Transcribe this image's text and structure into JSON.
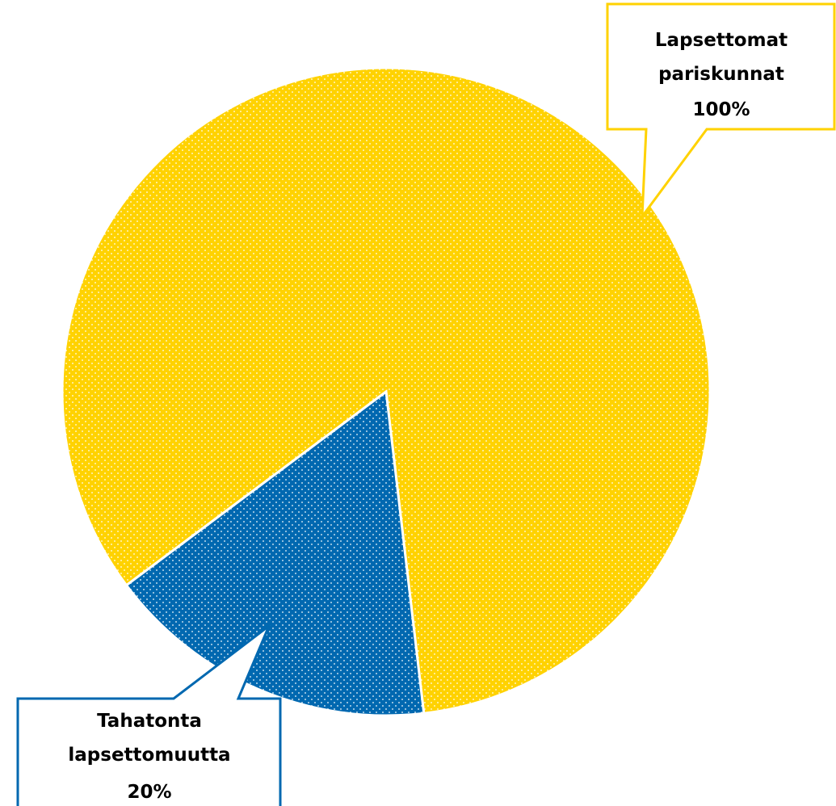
{
  "chart_data": {
    "type": "pie",
    "categories": [
      "Lapsettomat pariskunnat",
      "Tahatonta lapsettomuutta"
    ],
    "values": [
      100,
      20
    ],
    "value_labels": [
      "100%",
      "20%"
    ],
    "colors": [
      "#ffd200",
      "#0068b0"
    ]
  }
}
